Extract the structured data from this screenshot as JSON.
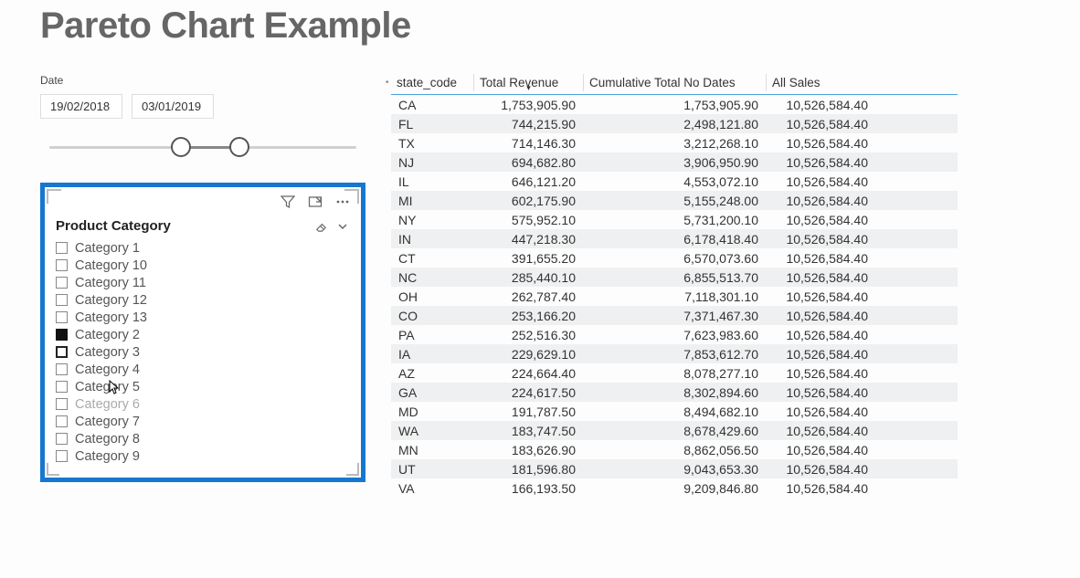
{
  "title": "Pareto Chart Example",
  "date_slicer": {
    "label": "Date",
    "from": "19/02/2018",
    "to": "03/01/2019",
    "slider": {
      "left_pct": 43,
      "right_pct": 62
    }
  },
  "category_slicer": {
    "title": "Product Category",
    "items": [
      {
        "label": "Category 1",
        "checked": false
      },
      {
        "label": "Category 10",
        "checked": false
      },
      {
        "label": "Category 11",
        "checked": false
      },
      {
        "label": "Category 12",
        "checked": false
      },
      {
        "label": "Category 13",
        "checked": false
      },
      {
        "label": "Category 2",
        "checked": true
      },
      {
        "label": "Category 3",
        "checked": false,
        "focus": true
      },
      {
        "label": "Category 4",
        "checked": false
      },
      {
        "label": "Category 5",
        "checked": false,
        "cursor": true
      },
      {
        "label": "Category 6",
        "checked": false,
        "dim": true
      },
      {
        "label": "Category 7",
        "checked": false
      },
      {
        "label": "Category 8",
        "checked": false
      },
      {
        "label": "Category 9",
        "checked": false
      }
    ]
  },
  "table": {
    "columns": [
      "state_code",
      "Total Revenue",
      "Cumulative Total No Dates",
      "All Sales"
    ],
    "sorted_col_index": 1,
    "rows": [
      [
        "CA",
        "1,753,905.90",
        "1,753,905.90",
        "10,526,584.40"
      ],
      [
        "FL",
        "744,215.90",
        "2,498,121.80",
        "10,526,584.40"
      ],
      [
        "TX",
        "714,146.30",
        "3,212,268.10",
        "10,526,584.40"
      ],
      [
        "NJ",
        "694,682.80",
        "3,906,950.90",
        "10,526,584.40"
      ],
      [
        "IL",
        "646,121.20",
        "4,553,072.10",
        "10,526,584.40"
      ],
      [
        "MI",
        "602,175.90",
        "5,155,248.00",
        "10,526,584.40"
      ],
      [
        "NY",
        "575,952.10",
        "5,731,200.10",
        "10,526,584.40"
      ],
      [
        "IN",
        "447,218.30",
        "6,178,418.40",
        "10,526,584.40"
      ],
      [
        "CT",
        "391,655.20",
        "6,570,073.60",
        "10,526,584.40"
      ],
      [
        "NC",
        "285,440.10",
        "6,855,513.70",
        "10,526,584.40"
      ],
      [
        "OH",
        "262,787.40",
        "7,118,301.10",
        "10,526,584.40"
      ],
      [
        "CO",
        "253,166.20",
        "7,371,467.30",
        "10,526,584.40"
      ],
      [
        "PA",
        "252,516.30",
        "7,623,983.60",
        "10,526,584.40"
      ],
      [
        "IA",
        "229,629.10",
        "7,853,612.70",
        "10,526,584.40"
      ],
      [
        "AZ",
        "224,664.40",
        "8,078,277.10",
        "10,526,584.40"
      ],
      [
        "GA",
        "224,617.50",
        "8,302,894.60",
        "10,526,584.40"
      ],
      [
        "MD",
        "191,787.50",
        "8,494,682.10",
        "10,526,584.40"
      ],
      [
        "WA",
        "183,747.50",
        "8,678,429.60",
        "10,526,584.40"
      ],
      [
        "MN",
        "183,626.90",
        "8,862,056.50",
        "10,526,584.40"
      ],
      [
        "UT",
        "181,596.80",
        "9,043,653.30",
        "10,526,584.40"
      ],
      [
        "VA",
        "166,193.50",
        "9,209,846.80",
        "10,526,584.40"
      ]
    ]
  },
  "colors": {
    "selection_border": "#1677d0",
    "header_underline": "#4aa3e0",
    "row_stripe": "#eef0f1"
  }
}
